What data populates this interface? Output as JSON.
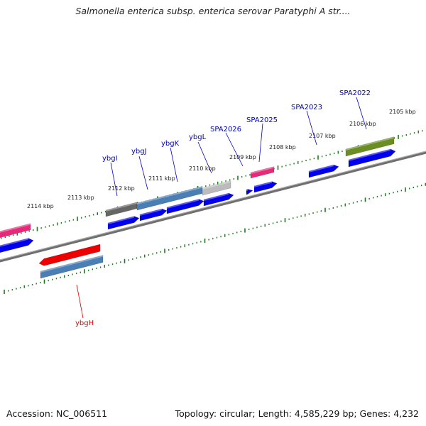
{
  "title": "Salmonella enterica subsp. enterica serovar Paratyphi A str....",
  "footer": {
    "accession": "Accession: NC_006511",
    "stats": "Topology: circular; Length: 4,585,229 bp; Genes: 4,232"
  },
  "scale_labels": [
    "2105 kbp",
    "2106 kbp",
    "2107 kbp",
    "2108 kbp",
    "2109 kbp",
    "2110 kbp",
    "2111 kbp",
    "2112 kbp",
    "2113 kbp",
    "2114 kbp"
  ],
  "gene_labels": [
    "SPA2022",
    "SPA2023",
    "SPA2025",
    "SPA2026",
    "ybgL",
    "ybgK",
    "ybgJ",
    "ybgI",
    "ybgH"
  ],
  "colors": {
    "backbone": "#808080",
    "tick": "#1a7a1a",
    "forward_orf": "#0000ee",
    "label_forward": "#0000cc",
    "label_reverse": "#dd0000",
    "pink": "#e8287a",
    "red": "#ee0000",
    "steel": "#4a7fb5",
    "olive": "#6b8e23",
    "gray_dark": "#666666",
    "gray_light": "#bbbbbb"
  }
}
